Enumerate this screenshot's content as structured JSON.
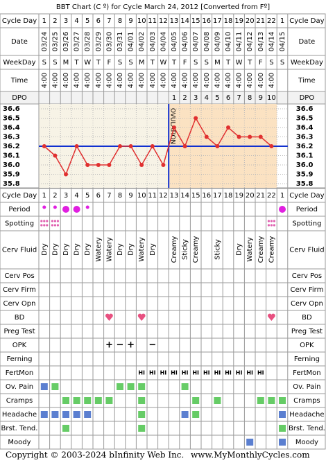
{
  "title": "BBT Chart (C º) for Cycle March 24, 2012  [Converted from Fº]",
  "top_rows": [
    {
      "label": "Cycle Day",
      "cells": [
        1,
        2,
        3,
        4,
        5,
        6,
        7,
        8,
        9,
        10,
        11,
        12,
        13,
        14,
        15,
        16,
        17,
        18,
        19,
        20,
        21,
        22,
        1
      ]
    },
    {
      "label": "Date",
      "cells": [
        "03/24",
        "03/25",
        "03/26",
        "03/27",
        "03/28",
        "03/29",
        "03/30",
        "03/31",
        "04/01",
        "04/02",
        "04/03",
        "04/04",
        "04/05",
        "04/06",
        "04/07",
        "04/08",
        "04/09",
        "04/10",
        "04/11",
        "04/12",
        "04/13",
        "04/14",
        "04/15"
      ]
    },
    {
      "label": "WeekDay",
      "cells": [
        "S",
        "S",
        "M",
        "T",
        "W",
        "T",
        "F",
        "S",
        "S",
        "M",
        "T",
        "W",
        "T",
        "F",
        "S",
        "S",
        "M",
        "T",
        "W",
        "T",
        "F",
        "S",
        "S"
      ]
    },
    {
      "label": "Time",
      "cells": [
        "4:00",
        "4:00",
        "4:00",
        "4:00",
        "4:00",
        "4:00",
        "4:00",
        "4:00",
        "4:00",
        "4:00",
        "4:00",
        "4:00",
        "4:00",
        "4:00",
        "4:00",
        "4:00",
        "4:00",
        "4:00",
        "4:00",
        "4:00",
        "4:00",
        "4:00",
        null
      ]
    },
    {
      "label": "DPO",
      "cells": [
        null,
        null,
        null,
        null,
        null,
        null,
        null,
        null,
        null,
        null,
        null,
        null,
        1,
        2,
        3,
        4,
        5,
        6,
        7,
        8,
        9,
        10,
        null
      ]
    }
  ],
  "chart_data": {
    "type": "line",
    "values": [
      36.2,
      36.1,
      35.9,
      36.2,
      36.0,
      36.0,
      36.0,
      36.2,
      36.2,
      36.0,
      36.2,
      36.0,
      36.4,
      36.2,
      36.5,
      36.3,
      36.2,
      36.4,
      36.3,
      36.3,
      36.3,
      36.2
    ],
    "color": "#e03030",
    "ylim": [
      35.8,
      36.6
    ],
    "yticks": [
      35.8,
      35.9,
      {
        "value": 36,
        "label": "36.0"
      },
      36.1,
      36.2,
      36.3,
      36.4,
      36.5,
      36.6
    ],
    "coverline": 36.2,
    "ovulation_after_day": 12,
    "ovulation_label": "OVULATION",
    "grid": true
  },
  "period": {
    "label": "Period",
    "small": [
      1,
      2,
      5
    ],
    "large": [
      3,
      4,
      23
    ],
    "color": "#e020e0"
  },
  "spotting": {
    "label": "Spotting",
    "days": [
      1,
      2,
      22
    ],
    "color": "#e060b0"
  },
  "cervical_fluid": {
    "label": "Cerv Fluid",
    "cells": [
      "Dry",
      "Dry",
      "Dry",
      "Dry",
      "Dry",
      "Watery",
      "Watery",
      "Dry",
      "Dry",
      "Watery",
      "Dry",
      null,
      "Creamy",
      "Sticky",
      "Creamy",
      null,
      "Sticky",
      null,
      "Dry",
      "Watery",
      "Creamy",
      "Creamy",
      null
    ]
  },
  "symptoms": [
    {
      "label": "Cerv Pos",
      "marker": "square",
      "days": []
    },
    {
      "label": "Cerv Firm",
      "marker": "square",
      "days": []
    },
    {
      "label": "Cerv Opn",
      "marker": "square",
      "days": []
    },
    {
      "label": "BD",
      "marker": "heart",
      "days": [
        7,
        10,
        22
      ],
      "color": "#e85080"
    },
    {
      "label": "Preg Test",
      "marker": "square",
      "days": []
    },
    {
      "label": "OPK",
      "marker": "text",
      "cells": [
        null,
        null,
        null,
        null,
        null,
        null,
        "+",
        "−",
        "+",
        null,
        "−",
        null,
        null,
        null,
        null,
        null,
        null,
        null,
        null,
        null,
        null,
        null,
        null
      ],
      "color": "#8a3fd0"
    },
    {
      "label": "Ferning",
      "marker": "square",
      "days": []
    },
    {
      "label": "FertMon",
      "marker": "text",
      "cells": [
        null,
        null,
        null,
        null,
        null,
        null,
        null,
        null,
        null,
        "HI",
        "HI",
        "HI",
        "HI",
        "HI",
        "HI",
        "HI",
        "HI",
        "HI",
        "HI",
        "HI",
        "HI",
        null,
        null
      ],
      "color": "#22a022"
    },
    {
      "label": "Ov. Pain",
      "marker": "square",
      "days": [
        1,
        2,
        8,
        9,
        10,
        14
      ],
      "color": [
        "#5b7fd0",
        "#66cc66",
        "#66cc66",
        "#66cc66",
        "#66cc66",
        "#66cc66"
      ]
    },
    {
      "label": "Cramps",
      "marker": "square",
      "days": [
        3,
        4,
        5,
        6,
        7,
        10,
        15,
        17,
        21,
        22,
        23
      ],
      "color": "#66cc66"
    },
    {
      "label": "Headache",
      "marker": "square",
      "days": [
        1,
        2,
        3,
        4,
        5,
        10,
        14,
        15,
        23
      ],
      "color": [
        "#5b7fd0",
        "#5b7fd0",
        "#5b7fd0",
        "#5b7fd0",
        "#5b7fd0",
        "#66cc66",
        "#5b7fd0",
        "#66cc66",
        "#5b7fd0"
      ]
    },
    {
      "label": "Brst. Tend.",
      "marker": "square",
      "days": [
        3,
        10,
        23
      ],
      "color": "#66cc66"
    },
    {
      "label": "Moody",
      "marker": "square",
      "days": [
        20,
        23
      ],
      "color": "#5b7fd0"
    }
  ],
  "footer": {
    "copyright": "Copyright © 2003-2024 bInfinity Web Inc.",
    "site": "www.MyMonthlyCycles.com"
  }
}
